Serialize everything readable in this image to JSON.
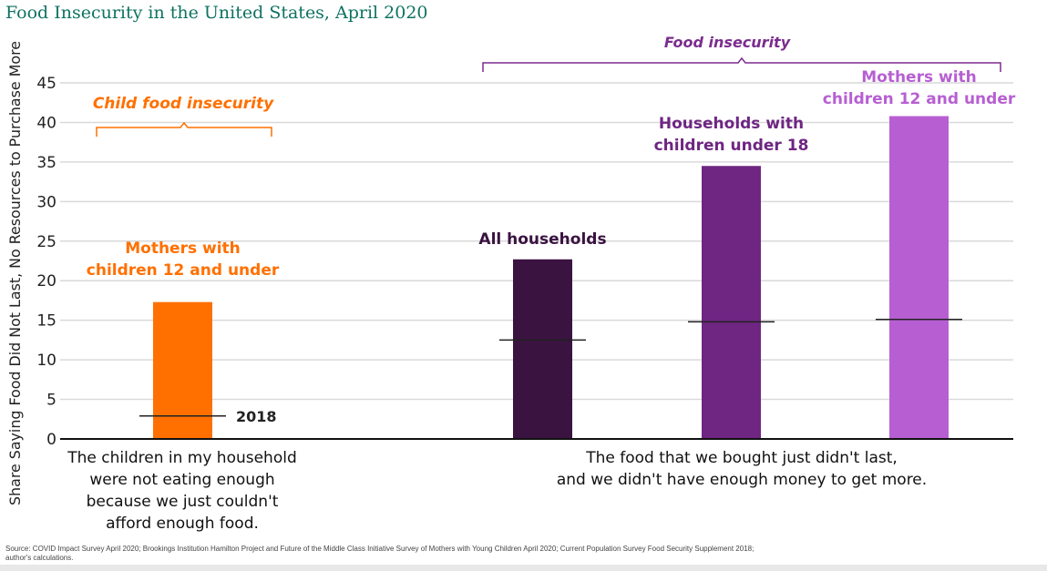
{
  "title": "Food Insecurity in the United States, April 2020",
  "source": [
    "Source: COVID Impact Survey April 2020; Brookings Institution Hamilton Project and Future of the Middle Class Initiative Survey of Mothers with Young Children April 2020; Current Population Survey Food Security Supplement 2018;",
    "author's calculations."
  ],
  "colors": {
    "orange": "#ff7000",
    "dark_purple": "#3a1340",
    "purple": "#6e2682",
    "light_purple": "#b75fd2",
    "bracket_purple": "#7b2d8e",
    "grid": "#d9d9d9",
    "title_green": "#0e7261"
  },
  "chart_data": {
    "type": "bar",
    "title": "Food Insecurity in the United States, April 2020",
    "ylabel": "Share Saying Food Did Not Last, No Resources to Purchase More",
    "ylim": [
      0,
      45
    ],
    "yticks": [
      0,
      5,
      10,
      15,
      20,
      25,
      30,
      35,
      40,
      45
    ],
    "grid": true,
    "groups": [
      {
        "name": "Child food insecurity",
        "category_label": [
          "The children in my household",
          "were not eating enough",
          "because we just couldn't",
          "afford enough food."
        ],
        "bars": [
          {
            "label": [
              "Mothers with",
              "children 12 and under"
            ],
            "value": 17.3,
            "value_2018": 2.9,
            "color": "#ff7000"
          }
        ]
      },
      {
        "name": "Food insecurity",
        "category_label": [
          "The food that we bought just didn't last,",
          "and we didn't have enough money to get more."
        ],
        "bars": [
          {
            "label": [
              "All households"
            ],
            "value": 22.7,
            "value_2018": 12.5,
            "color": "#3a1340"
          },
          {
            "label": [
              "Households with",
              "children under 18"
            ],
            "value": 34.5,
            "value_2018": 14.8,
            "color": "#6e2682"
          },
          {
            "label": [
              "Mothers with",
              "children 12 and under"
            ],
            "value": 40.8,
            "value_2018": 15.1,
            "color": "#b75fd2"
          }
        ]
      }
    ],
    "annotations": [
      {
        "text": "2018",
        "note": "horizontal line marks 2018 level"
      }
    ]
  }
}
